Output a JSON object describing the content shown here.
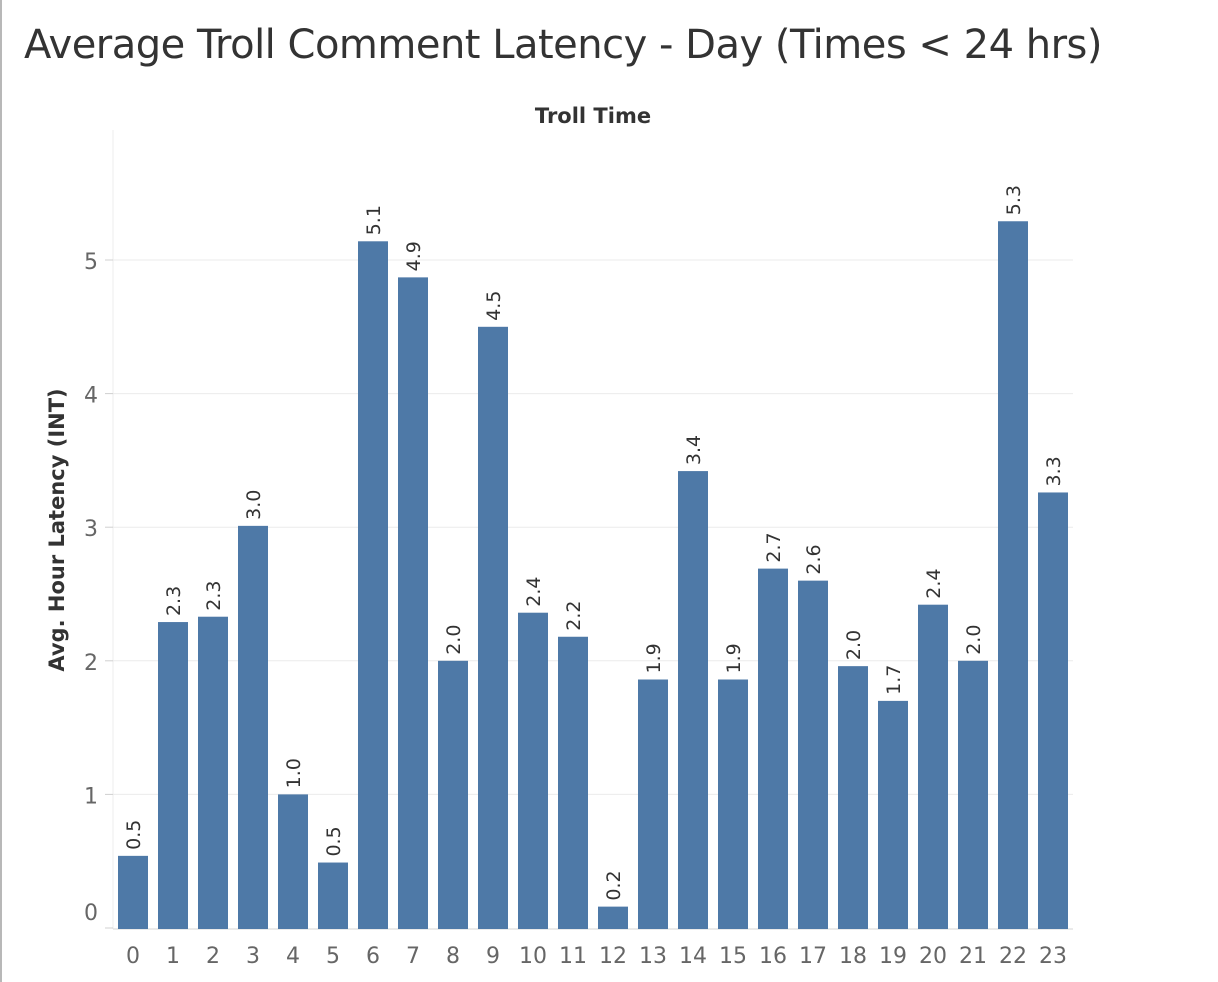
{
  "title": "Average Troll Comment Latency - Day (Times < 24 hrs)",
  "chart_data": {
    "type": "bar",
    "title": "Average Troll Comment Latency - Day (Times < 24 hrs)",
    "xlabel": "Troll Time",
    "ylabel": "Avg. Hour Latency (INT)",
    "categories": [
      "0",
      "1",
      "2",
      "3",
      "4",
      "5",
      "6",
      "7",
      "8",
      "9",
      "10",
      "11",
      "12",
      "13",
      "14",
      "15",
      "16",
      "17",
      "18",
      "19",
      "20",
      "21",
      "22",
      "23"
    ],
    "values": [
      0.54,
      2.29,
      2.33,
      3.01,
      1.0,
      0.49,
      5.14,
      4.87,
      2.0,
      4.5,
      2.36,
      2.18,
      0.16,
      1.86,
      3.42,
      1.86,
      2.69,
      2.6,
      1.96,
      1.7,
      2.42,
      2.0,
      5.29,
      3.26
    ],
    "labels": [
      "0.5",
      "2.3",
      "2.3",
      "3.0",
      "1.0",
      "0.5",
      "5.1",
      "4.9",
      "2.0",
      "4.5",
      "2.4",
      "2.2",
      "0.2",
      "1.9",
      "3.4",
      "1.9",
      "2.7",
      "2.6",
      "2.0",
      "1.7",
      "2.4",
      "2.0",
      "5.3",
      "3.3"
    ],
    "yticks": [
      0,
      1,
      2,
      3,
      4,
      5
    ],
    "ylim": [
      0,
      5.8
    ],
    "bar_color": "#4e79a7",
    "grid": true,
    "legend": "none"
  }
}
